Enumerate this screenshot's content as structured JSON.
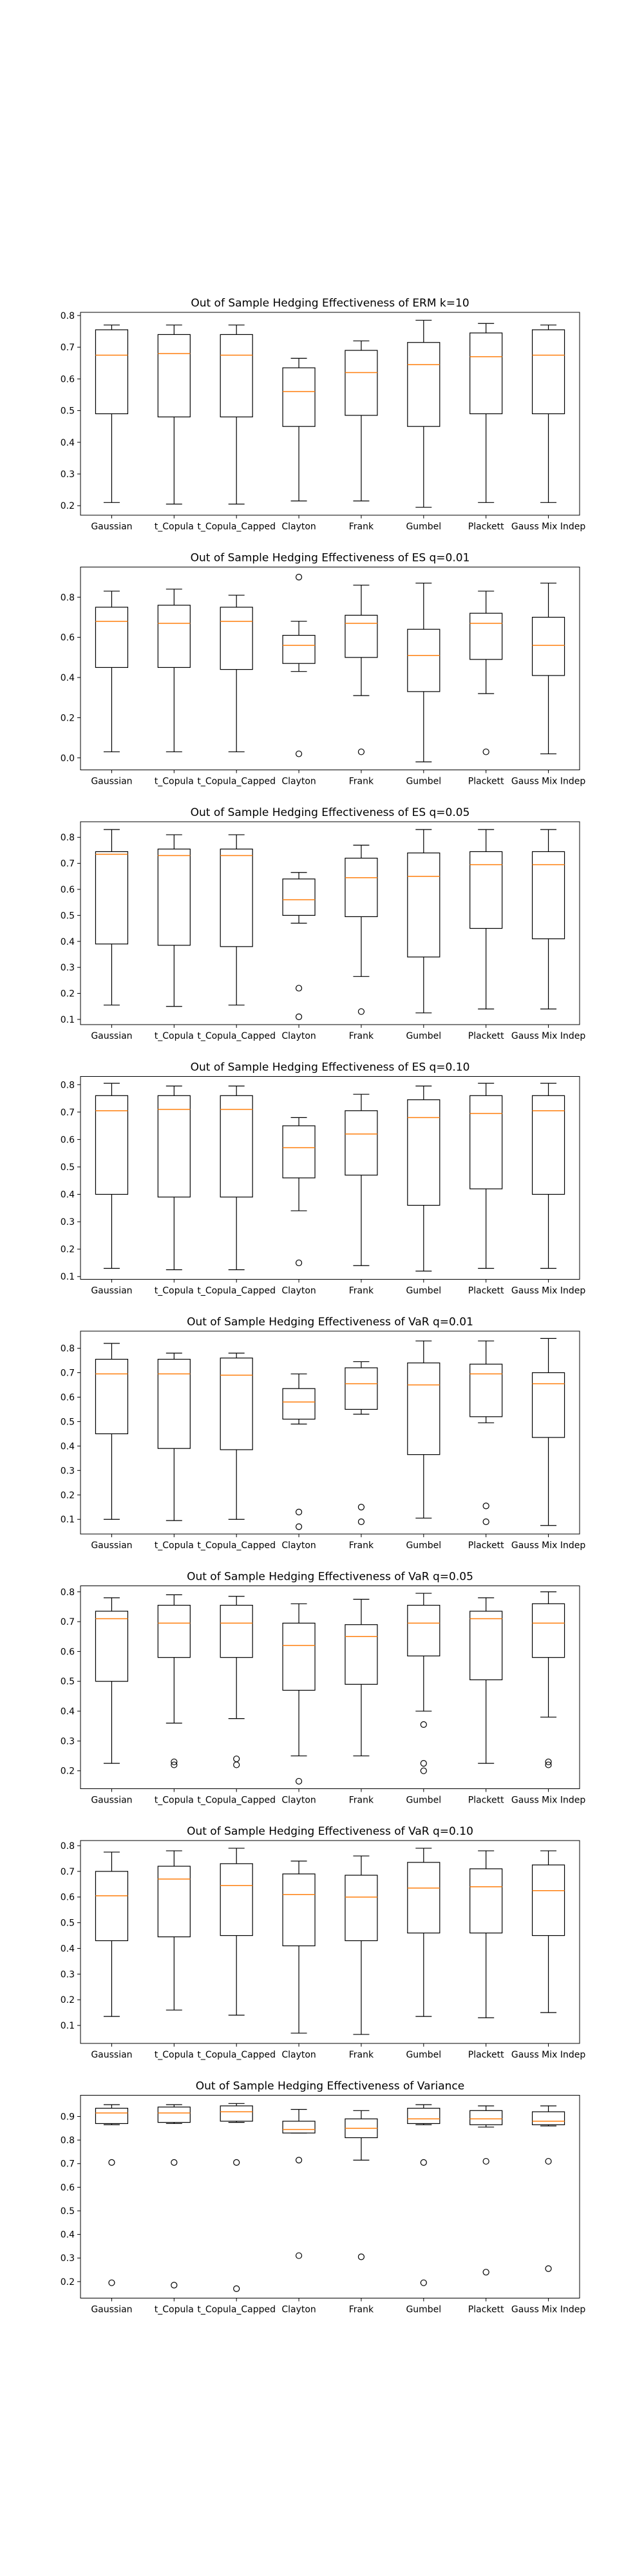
{
  "chart_data": [
    {
      "type": "box",
      "title": "Out of Sample Hedging Effectiveness of ERM k=10",
      "categories": [
        "Gaussian",
        "t_Copula",
        "t_Copula_Capped",
        "Clayton",
        "Frank",
        "Gumbel",
        "Plackett",
        "Gauss Mix Indep"
      ],
      "ylim": [
        0.17,
        0.81
      ],
      "yticks": [
        0.2,
        0.3,
        0.4,
        0.5,
        0.6,
        0.7,
        0.8
      ],
      "grid": false,
      "boxes": [
        {
          "whislo": 0.21,
          "q1": 0.49,
          "med": 0.675,
          "q3": 0.755,
          "whishi": 0.77,
          "fliers": []
        },
        {
          "whislo": 0.205,
          "q1": 0.48,
          "med": 0.68,
          "q3": 0.74,
          "whishi": 0.77,
          "fliers": []
        },
        {
          "whislo": 0.205,
          "q1": 0.48,
          "med": 0.675,
          "q3": 0.74,
          "whishi": 0.77,
          "fliers": []
        },
        {
          "whislo": 0.215,
          "q1": 0.45,
          "med": 0.56,
          "q3": 0.635,
          "whishi": 0.665,
          "fliers": []
        },
        {
          "whislo": 0.215,
          "q1": 0.485,
          "med": 0.62,
          "q3": 0.69,
          "whishi": 0.72,
          "fliers": []
        },
        {
          "whislo": 0.195,
          "q1": 0.45,
          "med": 0.645,
          "q3": 0.715,
          "whishi": 0.785,
          "fliers": []
        },
        {
          "whislo": 0.21,
          "q1": 0.49,
          "med": 0.67,
          "q3": 0.745,
          "whishi": 0.775,
          "fliers": []
        },
        {
          "whislo": 0.21,
          "q1": 0.49,
          "med": 0.675,
          "q3": 0.755,
          "whishi": 0.77,
          "fliers": []
        }
      ]
    },
    {
      "type": "box",
      "title": "Out of Sample Hedging Effectiveness of ES q=0.01",
      "categories": [
        "Gaussian",
        "t_Copula",
        "t_Copula_Capped",
        "Clayton",
        "Frank",
        "Gumbel",
        "Plackett",
        "Gauss Mix Indep"
      ],
      "ylim": [
        -0.06,
        0.95
      ],
      "yticks": [
        0.0,
        0.2,
        0.4,
        0.6,
        0.8
      ],
      "grid": false,
      "boxes": [
        {
          "whislo": 0.03,
          "q1": 0.45,
          "med": 0.68,
          "q3": 0.75,
          "whishi": 0.83,
          "fliers": []
        },
        {
          "whislo": 0.03,
          "q1": 0.45,
          "med": 0.67,
          "q3": 0.76,
          "whishi": 0.84,
          "fliers": []
        },
        {
          "whislo": 0.03,
          "q1": 0.44,
          "med": 0.68,
          "q3": 0.75,
          "whishi": 0.81,
          "fliers": []
        },
        {
          "whislo": 0.43,
          "q1": 0.47,
          "med": 0.56,
          "q3": 0.61,
          "whishi": 0.68,
          "fliers": [
            0.9,
            0.02
          ]
        },
        {
          "whislo": 0.31,
          "q1": 0.5,
          "med": 0.67,
          "q3": 0.71,
          "whishi": 0.86,
          "fliers": [
            0.03
          ]
        },
        {
          "whislo": -0.02,
          "q1": 0.33,
          "med": 0.51,
          "q3": 0.64,
          "whishi": 0.87,
          "fliers": []
        },
        {
          "whislo": 0.32,
          "q1": 0.49,
          "med": 0.67,
          "q3": 0.72,
          "whishi": 0.83,
          "fliers": [
            0.03
          ]
        },
        {
          "whislo": 0.02,
          "q1": 0.41,
          "med": 0.56,
          "q3": 0.7,
          "whishi": 0.87,
          "fliers": []
        }
      ]
    },
    {
      "type": "box",
      "title": "Out of Sample Hedging Effectiveness of ES q=0.05",
      "categories": [
        "Gaussian",
        "t_Copula",
        "t_Copula_Capped",
        "Clayton",
        "Frank",
        "Gumbel",
        "Plackett",
        "Gauss Mix Indep"
      ],
      "ylim": [
        0.08,
        0.86
      ],
      "yticks": [
        0.1,
        0.2,
        0.3,
        0.4,
        0.5,
        0.6,
        0.7,
        0.8
      ],
      "grid": false,
      "boxes": [
        {
          "whislo": 0.155,
          "q1": 0.39,
          "med": 0.735,
          "q3": 0.745,
          "whishi": 0.83,
          "fliers": []
        },
        {
          "whislo": 0.15,
          "q1": 0.385,
          "med": 0.73,
          "q3": 0.755,
          "whishi": 0.81,
          "fliers": []
        },
        {
          "whislo": 0.155,
          "q1": 0.38,
          "med": 0.73,
          "q3": 0.755,
          "whishi": 0.81,
          "fliers": []
        },
        {
          "whislo": 0.47,
          "q1": 0.5,
          "med": 0.56,
          "q3": 0.64,
          "whishi": 0.665,
          "fliers": [
            0.22,
            0.11
          ]
        },
        {
          "whislo": 0.265,
          "q1": 0.495,
          "med": 0.645,
          "q3": 0.72,
          "whishi": 0.77,
          "fliers": [
            0.13
          ]
        },
        {
          "whislo": 0.125,
          "q1": 0.34,
          "med": 0.65,
          "q3": 0.74,
          "whishi": 0.83,
          "fliers": []
        },
        {
          "whislo": 0.14,
          "q1": 0.45,
          "med": 0.695,
          "q3": 0.745,
          "whishi": 0.83,
          "fliers": []
        },
        {
          "whislo": 0.14,
          "q1": 0.41,
          "med": 0.695,
          "q3": 0.745,
          "whishi": 0.83,
          "fliers": []
        }
      ]
    },
    {
      "type": "box",
      "title": "Out of Sample Hedging Effectiveness of ES q=0.10",
      "categories": [
        "Gaussian",
        "t_Copula",
        "t_Copula_Capped",
        "Clayton",
        "Frank",
        "Gumbel",
        "Plackett",
        "Gauss Mix Indep"
      ],
      "ylim": [
        0.09,
        0.83
      ],
      "yticks": [
        0.1,
        0.2,
        0.3,
        0.4,
        0.5,
        0.6,
        0.7,
        0.8
      ],
      "grid": false,
      "boxes": [
        {
          "whislo": 0.13,
          "q1": 0.4,
          "med": 0.705,
          "q3": 0.76,
          "whishi": 0.805,
          "fliers": []
        },
        {
          "whislo": 0.125,
          "q1": 0.39,
          "med": 0.71,
          "q3": 0.76,
          "whishi": 0.795,
          "fliers": []
        },
        {
          "whislo": 0.125,
          "q1": 0.39,
          "med": 0.71,
          "q3": 0.76,
          "whishi": 0.795,
          "fliers": []
        },
        {
          "whislo": 0.34,
          "q1": 0.46,
          "med": 0.57,
          "q3": 0.65,
          "whishi": 0.68,
          "fliers": [
            0.15
          ]
        },
        {
          "whislo": 0.14,
          "q1": 0.47,
          "med": 0.62,
          "q3": 0.705,
          "whishi": 0.765,
          "fliers": []
        },
        {
          "whislo": 0.12,
          "q1": 0.36,
          "med": 0.68,
          "q3": 0.745,
          "whishi": 0.795,
          "fliers": []
        },
        {
          "whislo": 0.13,
          "q1": 0.42,
          "med": 0.695,
          "q3": 0.76,
          "whishi": 0.805,
          "fliers": []
        },
        {
          "whislo": 0.13,
          "q1": 0.4,
          "med": 0.705,
          "q3": 0.76,
          "whishi": 0.805,
          "fliers": []
        }
      ]
    },
    {
      "type": "box",
      "title": "Out of Sample Hedging Effectiveness of VaR q=0.01",
      "categories": [
        "Gaussian",
        "t_Copula",
        "t_Copula_Capped",
        "Clayton",
        "Frank",
        "Gumbel",
        "Plackett",
        "Gauss Mix Indep"
      ],
      "ylim": [
        0.04,
        0.87
      ],
      "yticks": [
        0.1,
        0.2,
        0.3,
        0.4,
        0.5,
        0.6,
        0.7,
        0.8
      ],
      "grid": false,
      "boxes": [
        {
          "whislo": 0.1,
          "q1": 0.45,
          "med": 0.695,
          "q3": 0.755,
          "whishi": 0.82,
          "fliers": []
        },
        {
          "whislo": 0.095,
          "q1": 0.39,
          "med": 0.695,
          "q3": 0.755,
          "whishi": 0.78,
          "fliers": []
        },
        {
          "whislo": 0.1,
          "q1": 0.385,
          "med": 0.69,
          "q3": 0.76,
          "whishi": 0.78,
          "fliers": []
        },
        {
          "whislo": 0.49,
          "q1": 0.51,
          "med": 0.58,
          "q3": 0.635,
          "whishi": 0.695,
          "fliers": [
            0.13,
            0.07
          ]
        },
        {
          "whislo": 0.53,
          "q1": 0.55,
          "med": 0.655,
          "q3": 0.72,
          "whishi": 0.745,
          "fliers": [
            0.15,
            0.09
          ]
        },
        {
          "whislo": 0.105,
          "q1": 0.365,
          "med": 0.65,
          "q3": 0.74,
          "whishi": 0.83,
          "fliers": []
        },
        {
          "whislo": 0.495,
          "q1": 0.52,
          "med": 0.695,
          "q3": 0.735,
          "whishi": 0.83,
          "fliers": [
            0.155,
            0.09
          ]
        },
        {
          "whislo": 0.075,
          "q1": 0.435,
          "med": 0.655,
          "q3": 0.7,
          "whishi": 0.84,
          "fliers": []
        }
      ]
    },
    {
      "type": "box",
      "title": "Out of Sample Hedging Effectiveness of VaR q=0.05",
      "categories": [
        "Gaussian",
        "t_Copula",
        "t_Copula_Capped",
        "Clayton",
        "Frank",
        "Gumbel",
        "Plackett",
        "Gauss Mix Indep"
      ],
      "ylim": [
        0.14,
        0.82
      ],
      "yticks": [
        0.2,
        0.3,
        0.4,
        0.5,
        0.6,
        0.7,
        0.8
      ],
      "grid": false,
      "boxes": [
        {
          "whislo": 0.225,
          "q1": 0.5,
          "med": 0.71,
          "q3": 0.735,
          "whishi": 0.78,
          "fliers": []
        },
        {
          "whislo": 0.36,
          "q1": 0.58,
          "med": 0.695,
          "q3": 0.755,
          "whishi": 0.79,
          "fliers": [
            0.23,
            0.22
          ]
        },
        {
          "whislo": 0.375,
          "q1": 0.58,
          "med": 0.695,
          "q3": 0.755,
          "whishi": 0.785,
          "fliers": [
            0.24,
            0.22
          ]
        },
        {
          "whislo": 0.25,
          "q1": 0.47,
          "med": 0.62,
          "q3": 0.695,
          "whishi": 0.76,
          "fliers": [
            0.165
          ]
        },
        {
          "whislo": 0.25,
          "q1": 0.49,
          "med": 0.65,
          "q3": 0.69,
          "whishi": 0.775,
          "fliers": []
        },
        {
          "whislo": 0.4,
          "q1": 0.585,
          "med": 0.695,
          "q3": 0.755,
          "whishi": 0.795,
          "fliers": [
            0.355,
            0.225,
            0.2
          ]
        },
        {
          "whislo": 0.225,
          "q1": 0.505,
          "med": 0.71,
          "q3": 0.735,
          "whishi": 0.78,
          "fliers": []
        },
        {
          "whislo": 0.38,
          "q1": 0.58,
          "med": 0.695,
          "q3": 0.76,
          "whishi": 0.8,
          "fliers": [
            0.23,
            0.22
          ]
        }
      ]
    },
    {
      "type": "box",
      "title": "Out of Sample Hedging Effectiveness of VaR q=0.10",
      "categories": [
        "Gaussian",
        "t_Copula",
        "t_Copula_Capped",
        "Clayton",
        "Frank",
        "Gumbel",
        "Plackett",
        "Gauss Mix Indep"
      ],
      "ylim": [
        0.03,
        0.82
      ],
      "yticks": [
        0.1,
        0.2,
        0.3,
        0.4,
        0.5,
        0.6,
        0.7,
        0.8
      ],
      "grid": false,
      "boxes": [
        {
          "whislo": 0.135,
          "q1": 0.43,
          "med": 0.605,
          "q3": 0.7,
          "whishi": 0.775,
          "fliers": []
        },
        {
          "whislo": 0.16,
          "q1": 0.445,
          "med": 0.67,
          "q3": 0.72,
          "whishi": 0.78,
          "fliers": []
        },
        {
          "whislo": 0.14,
          "q1": 0.45,
          "med": 0.645,
          "q3": 0.73,
          "whishi": 0.79,
          "fliers": []
        },
        {
          "whislo": 0.07,
          "q1": 0.41,
          "med": 0.61,
          "q3": 0.69,
          "whishi": 0.74,
          "fliers": []
        },
        {
          "whislo": 0.065,
          "q1": 0.43,
          "med": 0.6,
          "q3": 0.685,
          "whishi": 0.76,
          "fliers": []
        },
        {
          "whislo": 0.135,
          "q1": 0.46,
          "med": 0.635,
          "q3": 0.735,
          "whishi": 0.79,
          "fliers": []
        },
        {
          "whislo": 0.13,
          "q1": 0.46,
          "med": 0.64,
          "q3": 0.71,
          "whishi": 0.78,
          "fliers": []
        },
        {
          "whislo": 0.15,
          "q1": 0.45,
          "med": 0.625,
          "q3": 0.725,
          "whishi": 0.78,
          "fliers": []
        }
      ]
    },
    {
      "type": "box",
      "title": "Out of Sample Hedging Effectiveness of Variance",
      "categories": [
        "Gaussian",
        "t_Copula",
        "t_Copula_Capped",
        "Clayton",
        "Frank",
        "Gumbel",
        "Plackett",
        "Gauss Mix Indep"
      ],
      "ylim": [
        0.13,
        0.99
      ],
      "yticks": [
        0.2,
        0.3,
        0.4,
        0.5,
        0.6,
        0.7,
        0.8,
        0.9
      ],
      "grid": false,
      "boxes": [
        {
          "whislo": 0.865,
          "q1": 0.87,
          "med": 0.915,
          "q3": 0.935,
          "whishi": 0.95,
          "fliers": [
            0.705,
            0.195
          ]
        },
        {
          "whislo": 0.87,
          "q1": 0.875,
          "med": 0.915,
          "q3": 0.94,
          "whishi": 0.95,
          "fliers": [
            0.705,
            0.185
          ]
        },
        {
          "whislo": 0.875,
          "q1": 0.88,
          "med": 0.92,
          "q3": 0.945,
          "whishi": 0.955,
          "fliers": [
            0.705,
            0.17
          ]
        },
        {
          "whislo": 0.83,
          "q1": 0.83,
          "med": 0.845,
          "q3": 0.88,
          "whishi": 0.93,
          "fliers": [
            0.715,
            0.31
          ]
        },
        {
          "whislo": 0.715,
          "q1": 0.81,
          "med": 0.85,
          "q3": 0.89,
          "whishi": 0.925,
          "fliers": [
            0.305
          ]
        },
        {
          "whislo": 0.865,
          "q1": 0.87,
          "med": 0.89,
          "q3": 0.935,
          "whishi": 0.95,
          "fliers": [
            0.705,
            0.195
          ]
        },
        {
          "whislo": 0.855,
          "q1": 0.865,
          "med": 0.89,
          "q3": 0.925,
          "whishi": 0.945,
          "fliers": [
            0.71,
            0.24
          ]
        },
        {
          "whislo": 0.86,
          "q1": 0.865,
          "med": 0.88,
          "q3": 0.92,
          "whishi": 0.945,
          "fliers": [
            0.71,
            0.255
          ]
        }
      ]
    }
  ]
}
